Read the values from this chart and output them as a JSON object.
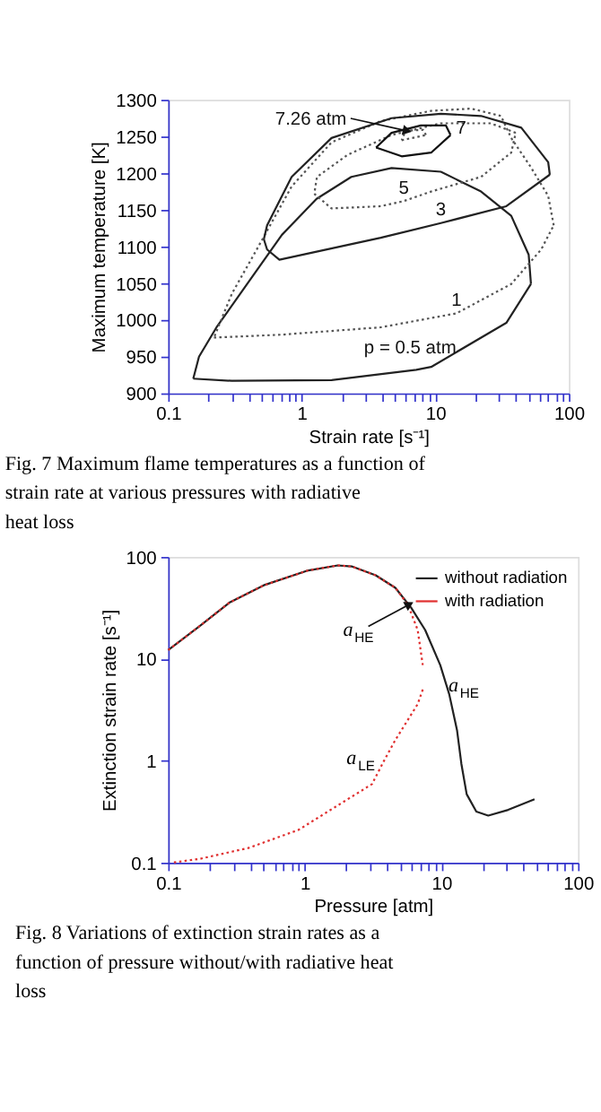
{
  "chart_data": [
    {
      "type": "line",
      "title": "Fig. 7 Maximum flame temperatures as a function of strain rate at various pressures with radiative heat loss",
      "xlabel": "Strain rate [s⁻¹]",
      "ylabel": "Maximum temperature [K]",
      "log": "x",
      "xlim": [
        0.1,
        100
      ],
      "ylim": [
        900,
        1300
      ],
      "xticks": [
        0.1,
        {
          "value": 0.2,
          "label": null
        },
        {
          "value": 0.3,
          "label": null
        },
        {
          "value": 0.4,
          "label": null
        },
        {
          "value": 0.5,
          "label": null
        },
        {
          "value": 0.6,
          "label": null
        },
        {
          "value": 0.7,
          "label": null
        },
        {
          "value": 0.8,
          "label": null
        },
        {
          "value": 0.9,
          "label": null
        },
        1,
        {
          "value": 2,
          "label": null
        },
        {
          "value": 3,
          "label": null
        },
        {
          "value": 4,
          "label": null
        },
        {
          "value": 5,
          "label": null
        },
        {
          "value": 6,
          "label": null
        },
        {
          "value": 7,
          "label": null
        },
        {
          "value": 8,
          "label": null
        },
        {
          "value": 9,
          "label": null
        },
        10,
        {
          "value": 20,
          "label": null
        },
        {
          "value": 30,
          "label": null
        },
        {
          "value": 40,
          "label": null
        },
        {
          "value": 50,
          "label": null
        },
        {
          "value": 60,
          "label": null
        },
        {
          "value": 70,
          "label": null
        },
        {
          "value": 80,
          "label": null
        },
        {
          "value": 90,
          "label": null
        },
        100
      ],
      "yticks": [
        900,
        950,
        1000,
        1050,
        1100,
        1150,
        1200,
        1250,
        1300
      ],
      "grid": false,
      "legend": false,
      "marker": "none",
      "series": [
        {
          "color": "#222222",
          "line_style": "solid",
          "x": [
            0.154,
            0.3,
            1.67,
            7.2,
            9.3,
            34,
            52
          ],
          "values": [
            920,
            917,
            918,
            932,
            936,
            996,
            1049
          ]
        },
        {
          "color": "#222222",
          "line_style": "solid",
          "x": [
            52,
            50,
            37,
            22,
            11,
            4.7,
            2.35,
            1.29,
            0.71,
            0.39,
            0.23,
            0.17,
            0.154
          ],
          "values": [
            1049,
            1089,
            1142,
            1175,
            1202,
            1207,
            1195,
            1165,
            1116,
            1049,
            990,
            950,
            920
          ]
        },
        {
          "color": "#555555",
          "line_style": "dotted",
          "x": [
            0.22,
            0.71,
            3.9,
            14.4,
            37,
            62,
            77
          ],
          "values": [
            976,
            980,
            990,
            1009,
            1049,
            1096,
            1129
          ]
        },
        {
          "color": "#555555",
          "line_style": "dotted",
          "x": [
            77,
            70,
            52,
            37,
            31,
            18.6,
            9.3,
            3.9,
            1.67,
            0.84,
            0.46,
            0.3,
            0.22
          ],
          "values": [
            1129,
            1169,
            1208,
            1248,
            1278,
            1288,
            1285,
            1271,
            1242,
            1182,
            1096,
            1036,
            976
          ]
        },
        {
          "color": "#222222",
          "line_style": "solid",
          "x": [
            0.52,
            0.55,
            0.68,
            3.9,
            11,
            34,
            72
          ],
          "values": [
            1110,
            1096,
            1082,
            1112,
            1132,
            1155,
            1198
          ]
        },
        {
          "color": "#222222",
          "line_style": "solid",
          "x": [
            72,
            70,
            44,
            22,
            11,
            4.7,
            1.67,
            0.84,
            0.55,
            0.52
          ],
          "values": [
            1198,
            1215,
            1262,
            1278,
            1281,
            1275,
            1248,
            1195,
            1129,
            1110
          ]
        },
        {
          "color": "#555555",
          "line_style": "dotted",
          "x": [
            1.24,
            1.67,
            3.9,
            5.8,
            9.3,
            22,
            37,
            40
          ],
          "values": [
            1172,
            1152,
            1155,
            1162,
            1175,
            1195,
            1228,
            1255
          ]
        },
        {
          "color": "#555555",
          "line_style": "dotted",
          "x": [
            40,
            26,
            11,
            4.7,
            2.2,
            1.3,
            1.24
          ],
          "values": [
            1255,
            1268,
            1268,
            1252,
            1225,
            1195,
            1172
          ]
        },
        {
          "color": "#111111",
          "line_style": "solid",
          "x": [
            3.6,
            5.6,
            9.3,
            13
          ],
          "values": [
            1235,
            1223,
            1228,
            1252
          ]
        },
        {
          "color": "#111111",
          "line_style": "solid",
          "x": [
            13,
            12,
            7.8,
            4.7,
            3.6
          ],
          "values": [
            1252,
            1265,
            1265,
            1255,
            1235
          ]
        },
        {
          "color": "#555555",
          "line_style": "dotted",
          "x": [
            5.6,
            8.5
          ],
          "values": [
            1245,
            1252
          ]
        },
        {
          "color": "#555555",
          "line_style": "dotted",
          "x": [
            8.5,
            8.1,
            6,
            5.6
          ],
          "values": [
            1252,
            1259,
            1258,
            1245
          ]
        }
      ],
      "annotations": [
        {
          "text": "p = 0.5 atm",
          "x": 7.2,
          "y": 932
        },
        {
          "text": "1",
          "x": 14.4,
          "y": 1009
        },
        {
          "text": "3",
          "x": 11,
          "y": 1132
        },
        {
          "text": "5",
          "x": 5.8,
          "y": 1162
        },
        {
          "text": "7",
          "x": 13,
          "y": 1252
        },
        {
          "text": "7.26 atm",
          "x": 6,
          "y": 1258
        }
      ]
    },
    {
      "type": "line",
      "title": "Fig. 8 Variations of extinction strain rates as a function of pressure without/with radiative heat loss",
      "xlabel": "Pressure [atm]",
      "ylabel": "Extinction strain rate [s⁻¹]",
      "log": "xy",
      "xlim": [
        0.1,
        100
      ],
      "ylim": [
        0.1,
        100
      ],
      "xticks": [
        0.1,
        {
          "value": 0.2,
          "label": null
        },
        {
          "value": 0.3,
          "label": null
        },
        {
          "value": 0.4,
          "label": null
        },
        {
          "value": 0.5,
          "label": null
        },
        {
          "value": 0.6,
          "label": null
        },
        {
          "value": 0.7,
          "label": null
        },
        {
          "value": 0.8,
          "label": null
        },
        {
          "value": 0.9,
          "label": null
        },
        1,
        {
          "value": 2,
          "label": null
        },
        {
          "value": 3,
          "label": null
        },
        {
          "value": 4,
          "label": null
        },
        {
          "value": 5,
          "label": null
        },
        {
          "value": 6,
          "label": null
        },
        {
          "value": 7,
          "label": null
        },
        {
          "value": 8,
          "label": null
        },
        {
          "value": 9,
          "label": null
        },
        10,
        {
          "value": 20,
          "label": null
        },
        {
          "value": 30,
          "label": null
        },
        {
          "value": 40,
          "label": null
        },
        {
          "value": 50,
          "label": null
        },
        {
          "value": 60,
          "label": null
        },
        {
          "value": 70,
          "label": null
        },
        {
          "value": 80,
          "label": null
        },
        {
          "value": 90,
          "label": null
        },
        100
      ],
      "yticks": [
        0.1,
        1,
        10,
        100
      ],
      "grid": false,
      "legend": "top right",
      "marker": "none",
      "series": [
        {
          "name": "without radiation",
          "color": "#222222",
          "line_style": "solid",
          "x": [
            0.1,
            0.17,
            0.28,
            0.5,
            1.06,
            1.74,
            2.2,
            3.3,
            4.6,
            6,
            7.6,
            9.8,
            11.4,
            13,
            14,
            15.3,
            18,
            22,
            30.8,
            48
          ],
          "values": [
            12.2,
            21,
            35.6,
            52.7,
            73.8,
            82.6,
            80.8,
            66,
            49.8,
            31.8,
            19.2,
            8.7,
            4.5,
            2.0,
            0.93,
            0.47,
            0.317,
            0.29,
            0.33,
            0.42
          ]
        },
        {
          "name": "with radiation",
          "color": "#e03030",
          "line_style": "dotted",
          "x": [
            0.1,
            0.17,
            0.28,
            0.5,
            1.06,
            1.74,
            2.2,
            3.3,
            4.6,
            5.7,
            6.7,
            7.3
          ],
          "values": [
            12.2,
            21,
            35.6,
            52.7,
            73.8,
            82.6,
            80.8,
            66,
            49.8,
            33.7,
            19.2,
            8.7
          ]
        },
        {
          "color": "#e03030",
          "line_style": "dotted",
          "x": [
            7.3,
            6.7,
            4.6,
            3.8,
            3.1,
            1.6,
            0.9,
            0.39,
            0.17,
            0.106
          ],
          "values": [
            5.0,
            3.6,
            1.6,
            1.0,
            0.59,
            0.34,
            0.21,
            0.14,
            0.109,
            0.1
          ]
        }
      ],
      "annotations": [
        {
          "text": "a$_{HE}$",
          "x": 5.7,
          "y": 33.7
        },
        {
          "text": "a$_{HE}$",
          "x": 11.4,
          "y": 4.5
        },
        {
          "text": "a$_{LE}$",
          "x": 3.8,
          "y": 1.0
        }
      ]
    }
  ]
}
